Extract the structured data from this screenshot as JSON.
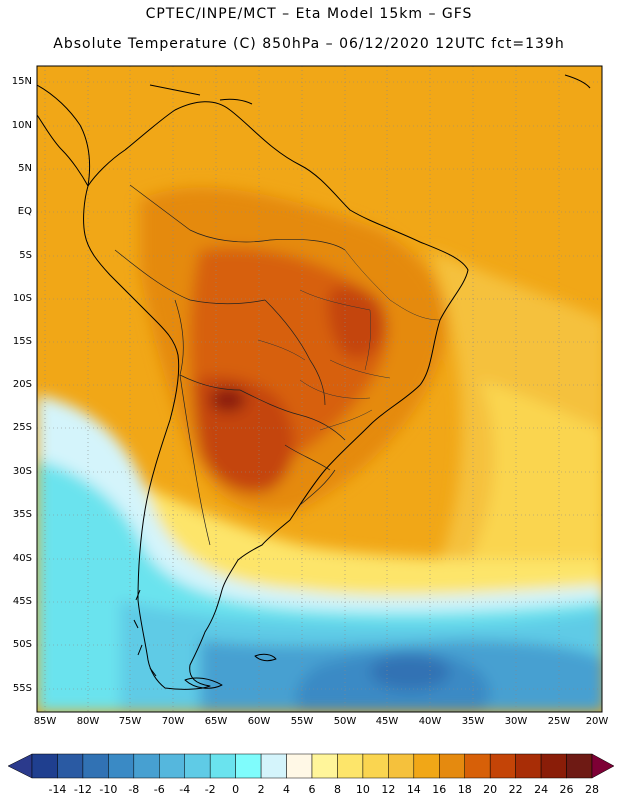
{
  "header": {
    "line1": "CPTEC/INPE/MCT –  Eta Model 15km – GFS",
    "line2": "Absolute Temperature (C) 850hPa – 06/12/2020 12UTC fct=139h"
  },
  "map": {
    "lat_labels": [
      "15N",
      "10N",
      "5N",
      "EQ",
      "5S",
      "10S",
      "15S",
      "20S",
      "25S",
      "30S",
      "35S",
      "40S",
      "45S",
      "50S",
      "55S"
    ],
    "lon_labels": [
      "85W",
      "80W",
      "75W",
      "70W",
      "65W",
      "60W",
      "55W",
      "50W",
      "45W",
      "40W",
      "35W",
      "30W",
      "25W",
      "20W"
    ],
    "extent": {
      "west": -85,
      "east": -20,
      "north": 16,
      "south": -58
    }
  },
  "colorbar": {
    "labels": [
      "-14",
      "-12",
      "-10",
      "-8",
      "-6",
      "-4",
      "-2",
      "0",
      "2",
      "4",
      "6",
      "8",
      "10",
      "12",
      "14",
      "16",
      "18",
      "20",
      "22",
      "24",
      "26",
      "28"
    ],
    "colors": [
      "#1f3f8f",
      "#2a5aa3",
      "#3172b4",
      "#3a8ac5",
      "#47a0d1",
      "#55b7dd",
      "#5fcbe6",
      "#6ae3ee",
      "#7ffcfc",
      "#d4f4fb",
      "#fff8e6",
      "#fff59a",
      "#fde56a",
      "#fad550",
      "#f5c13c",
      "#f1a717",
      "#e58a0f",
      "#d76008",
      "#c44407",
      "#a82d06",
      "#8a1d08",
      "#6e1a14"
    ],
    "low_arrow_color": "#2b3a8c",
    "high_arrow_color": "#7d0035"
  }
}
